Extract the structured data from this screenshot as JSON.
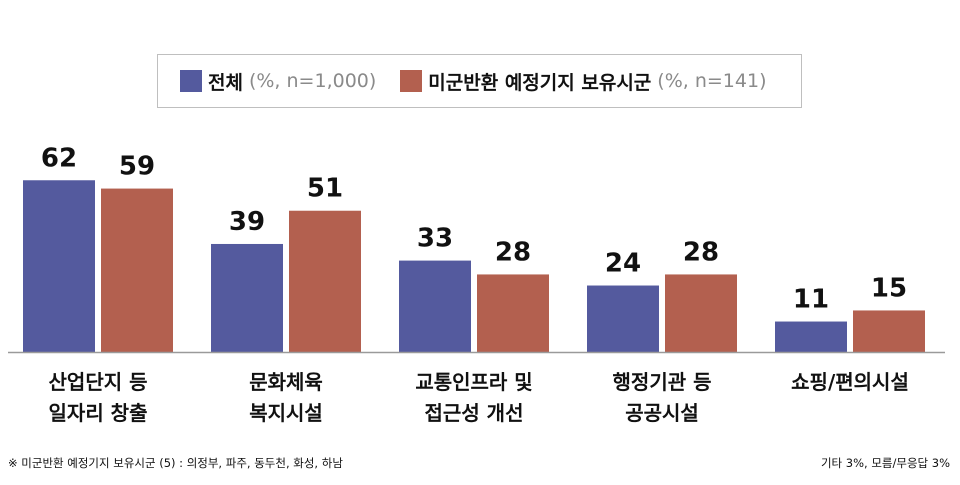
{
  "chart_data": {
    "type": "bar",
    "categories": [
      "산업단지 등\n일자리 창출",
      "문화체육\n복지시설",
      "교통인프라 및\n접근성 개선",
      "행정기관 등\n공공시설",
      "쇼핑/편의시설"
    ],
    "series": [
      {
        "name": "전체",
        "note": "(%, n=1,000)",
        "color": "#545a9e",
        "values": [
          62,
          39,
          33,
          24,
          11
        ]
      },
      {
        "name": "미군반환 예정기지 보유시군",
        "note": "(%, n=141)",
        "color": "#b3604f",
        "values": [
          59,
          51,
          28,
          28,
          15
        ]
      }
    ],
    "ylim": [
      0,
      65
    ],
    "title": "",
    "xlabel": "",
    "ylabel": "",
    "grid": false,
    "legend_position": "top"
  },
  "footnote": "※ 미군반환 예정기지 보유시군 (5) : 의정부, 파주, 동두천, 화성, 하남",
  "footnote_right": "기타 3%, 모름/무응답 3%",
  "colors": {
    "axis": "#9a9a9a",
    "text": "#111111",
    "legend_note": "#8a8a8a"
  }
}
